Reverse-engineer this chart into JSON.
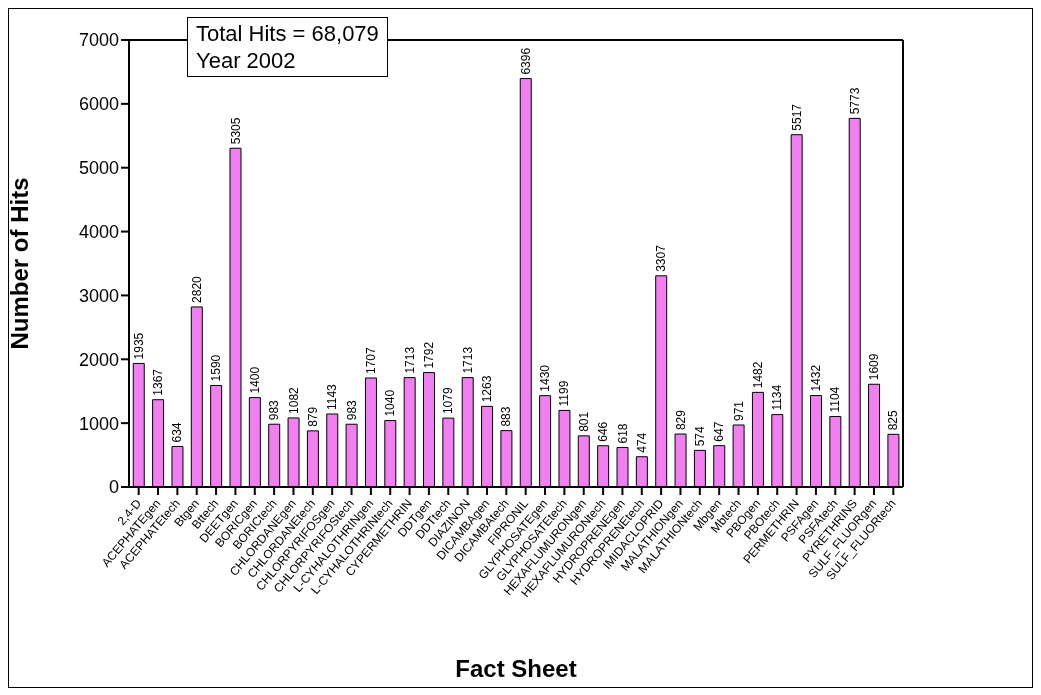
{
  "chart_data": {
    "type": "bar",
    "xlabel": "Fact Sheet",
    "ylabel": "Number of Hits",
    "annotations": [
      "Total Hits = 68,079",
      "Year 2002"
    ],
    "categories": [
      "2,4-D",
      "ACEPHATEgen",
      "ACEPHATEtech",
      "Btgen",
      "Bttech",
      "DEETgen",
      "BORICgen",
      "BORICtech",
      "CHLORDANEgen",
      "CHLORDANEtech",
      "CHLORPYRIFOSgen",
      "CHLORPYRIFOStech",
      "L-CYHALOTHRINgen",
      "L-CYHALOTHRINtech",
      "CYPERMETHRIN",
      "DDTgen",
      "DDTtech",
      "DIAZINON",
      "DICAMBAgen",
      "DICAMBAtech",
      "FIPRONIL",
      "GLYPHOSATEgen",
      "GLYPHOSATEtech",
      "HEXAFLUMURONgen",
      "HEXAFLUMURONtech",
      "HYDROPRENEgen",
      "HYDROPRENEtech",
      "IMIDACLOPRID",
      "MALATHIONgen",
      "MALATHIONtech",
      "Mbgen",
      "Mbtech",
      "PBOgen",
      "PBOtech",
      "PERMETHRIN",
      "PSFAgen",
      "PSFAtech",
      "PYRETHRINS",
      "SULF_FLUORgen",
      "SULF_FLUORtech"
    ],
    "values": [
      1935,
      1367,
      634,
      2820,
      1590,
      5305,
      1400,
      983,
      1082,
      879,
      1143,
      983,
      1707,
      1040,
      1713,
      1792,
      1079,
      1713,
      1263,
      883,
      6396,
      1430,
      1199,
      801,
      646,
      618,
      474,
      3307,
      829,
      574,
      647,
      971,
      1482,
      1134,
      5517,
      1432,
      1104,
      5773,
      1609,
      825
    ],
    "color": "#f080f0",
    "data_labels": true,
    "ylim": [
      0,
      7000
    ],
    "yticks": [
      0,
      1000,
      2000,
      3000,
      4000,
      5000,
      6000,
      7000
    ],
    "grid": false,
    "legend": false
  }
}
